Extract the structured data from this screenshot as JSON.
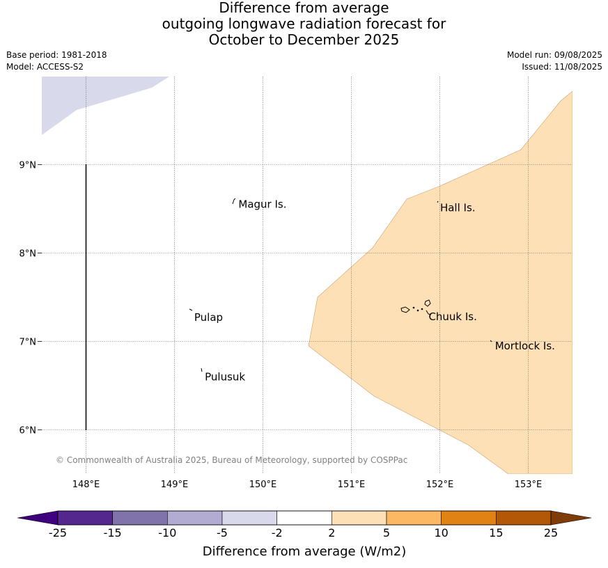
{
  "title": {
    "line1": "Difference from average",
    "line2": "outgoing longwave radiation forecast for",
    "line3": "October to December 2025"
  },
  "meta": {
    "base_period": "Base period: 1981-2018",
    "model": "Model: ACCESS-S2",
    "model_run": "Model run: 09/08/2025",
    "issued": "Issued: 11/08/2025"
  },
  "map": {
    "lon_ticks": [
      "148°E",
      "149°E",
      "150°E",
      "151°E",
      "152°E",
      "153°E"
    ],
    "lat_ticks": [
      "9°N",
      "8°N",
      "7°N",
      "6°N"
    ],
    "places": [
      {
        "name": "Magur Is.",
        "lon": 149.7,
        "lat": 8.55
      },
      {
        "name": "Hall Is.",
        "lon": 151.98,
        "lat": 8.51
      },
      {
        "name": "Pulap",
        "lon": 149.2,
        "lat": 7.27
      },
      {
        "name": "Chuuk Is.",
        "lon": 151.85,
        "lat": 7.28
      },
      {
        "name": "Mortlock Is.",
        "lon": 152.6,
        "lat": 6.95
      },
      {
        "name": "Pulusuk",
        "lon": 149.32,
        "lat": 6.6
      }
    ],
    "copyright": "© Commonwealth of Australia 2025, Bureau of Meteorology, supported by COSPPac",
    "regions": [
      {
        "category": "-5 to -2",
        "color": "#dadaeb"
      },
      {
        "category": "2 to 5",
        "color": "#fde0b6"
      }
    ]
  },
  "colorbar": {
    "label": "Difference from average (W/m2)",
    "ticks": [
      "-25",
      "-15",
      "-10",
      "-5",
      "-2",
      "2",
      "5",
      "10",
      "15",
      "25"
    ],
    "under_color": "#3f007d",
    "over_color": "#7f3b08",
    "colors": [
      "#54278f",
      "#8073ac",
      "#b2abd2",
      "#d8daeb",
      "#ffffff",
      "#fee0b6",
      "#fdb863",
      "#e08214",
      "#b35806"
    ]
  }
}
